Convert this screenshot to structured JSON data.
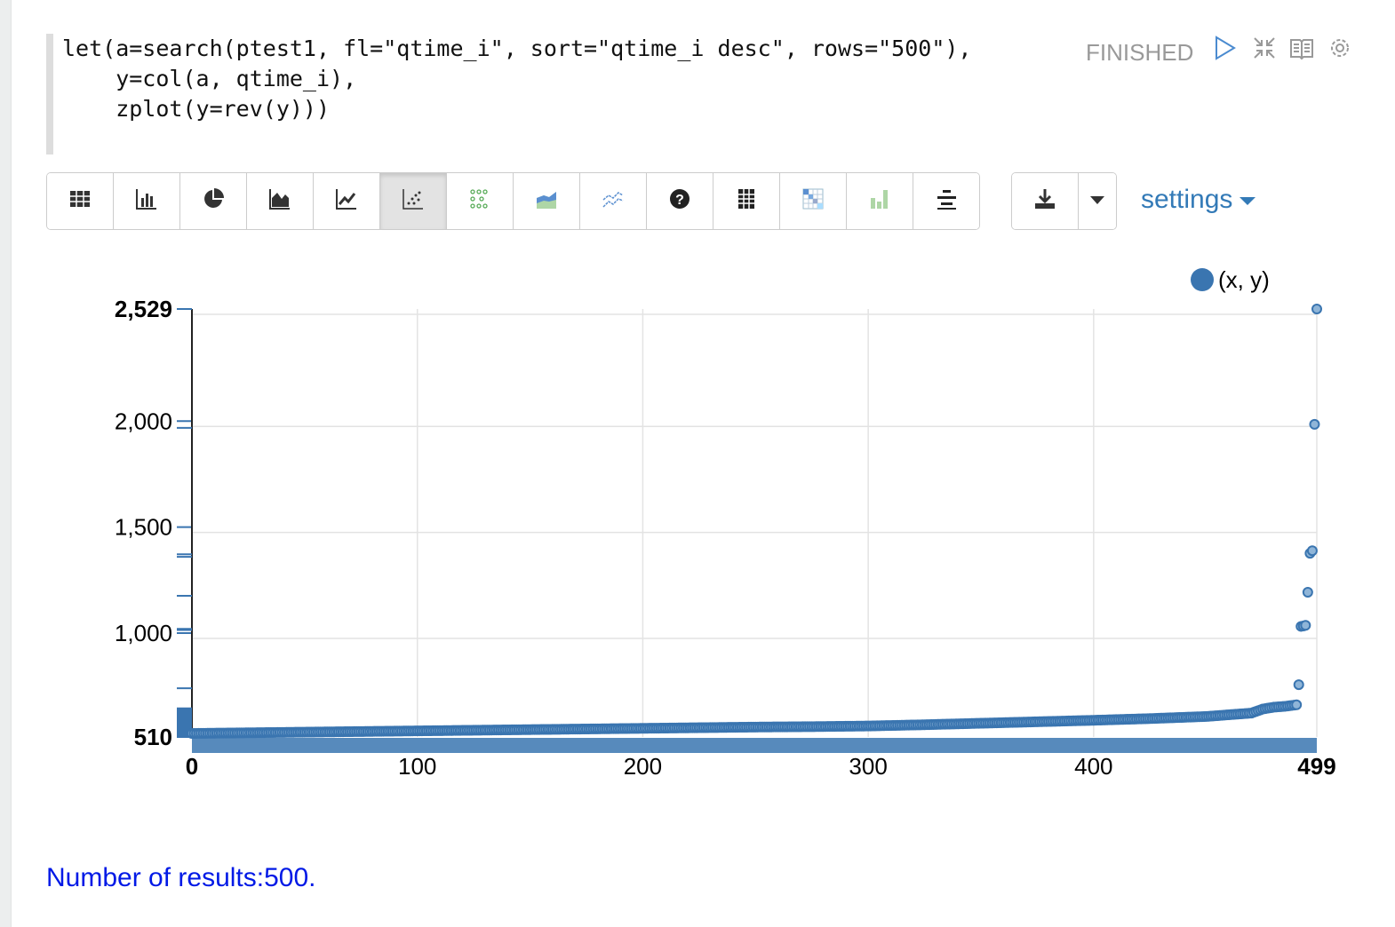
{
  "paragraph": {
    "code_lines": [
      "let(a=search(ptest1, fl=\"qtime_i\", sort=\"qtime_i desc\", rows=\"500\"),",
      "    y=col(a, qtime_i),",
      "    zplot(y=rev(y)))"
    ],
    "status": "FINISHED",
    "status_icons": [
      "play-icon",
      "collapse-icon",
      "book-icon",
      "gear-icon"
    ]
  },
  "toolbar": {
    "buttons": [
      "table-icon",
      "bar-chart-icon",
      "pie-chart-icon",
      "area-chart-icon",
      "line-chart-icon",
      "scatter-chart-icon",
      "bubble-grid-icon",
      "stacked-area-icon",
      "multi-line-icon",
      "help-icon",
      "grid-icon",
      "heatmap-icon",
      "green-bar-icon",
      "align-center-icon"
    ],
    "active_index": 5,
    "download_icon": "download-icon",
    "dropdown_icon": "caret-down-icon",
    "settings_label": "settings"
  },
  "chart_data": {
    "type": "scatter",
    "legend": {
      "entries": [
        "(x, y)"
      ],
      "placement": "top-right"
    },
    "color": "#3a75b0",
    "xlim": [
      0,
      499
    ],
    "ylim": [
      510,
      2529
    ],
    "x_ticks": [
      "0",
      "100",
      "200",
      "300",
      "400",
      "499"
    ],
    "y_ticks": [
      "510",
      "1,000",
      "1,500",
      "2,000",
      "2,529"
    ],
    "grid": true,
    "x": [
      0,
      25,
      50,
      75,
      100,
      125,
      150,
      175,
      200,
      225,
      250,
      275,
      300,
      325,
      350,
      375,
      400,
      425,
      450,
      460,
      470,
      475,
      480,
      485,
      490,
      491,
      492,
      493,
      494,
      495,
      496,
      497,
      498,
      499
    ],
    "y": [
      510,
      513,
      516,
      519,
      522,
      525,
      528,
      531,
      534,
      537,
      540,
      542,
      545,
      551,
      558,
      565,
      572,
      580,
      590,
      598,
      606,
      625,
      634,
      638,
      645,
      740,
      1015,
      1017,
      1020,
      1176,
      1360,
      1372,
      1968,
      2529
    ]
  },
  "footer": {
    "results_text": "Number of results:500."
  }
}
